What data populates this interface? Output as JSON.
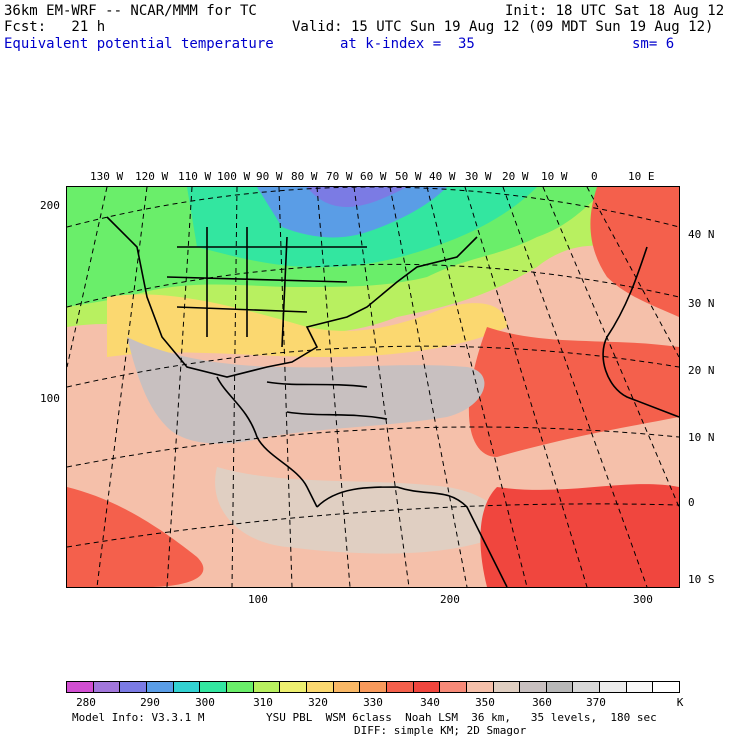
{
  "header": {
    "model": "36km EM-WRF -- NCAR/MMM for TC",
    "init": "Init: 18 UTC Sat 18 Aug 12",
    "fcst": "Fcst:   21 h",
    "valid": "Valid: 15 UTC Sun 19 Aug 12 (09 MDT Sun 19 Aug 12)",
    "field": "Equivalent potential temperature",
    "level": "at k-index =  35",
    "smooth": "sm= 6"
  },
  "map": {
    "lon_labels": [
      "130 W",
      "120 W",
      "110 W",
      "100 W",
      "90 W",
      "80 W",
      "70 W",
      "60 W",
      "50 W",
      "40 W",
      "30 W",
      "20 W",
      "10 W",
      "0",
      "10 E"
    ],
    "lat_labels": [
      "40 N",
      "30 N",
      "20 N",
      "10 N",
      "0",
      "10 S"
    ],
    "y_grid_labels": [
      "200",
      "100"
    ],
    "x_grid_labels": [
      "100",
      "200",
      "300"
    ]
  },
  "colorbar": {
    "unit": "K",
    "labels": [
      "280",
      "290",
      "300",
      "310",
      "320",
      "330",
      "340",
      "350",
      "360",
      "370"
    ],
    "colors": [
      "#d24fd2",
      "#a277db",
      "#7b7be4",
      "#5a9de6",
      "#33d2d2",
      "#33e6a0",
      "#6aee6a",
      "#b8f060",
      "#eef070",
      "#fbd870",
      "#f9b866",
      "#f89a5c",
      "#f4604c",
      "#f0463e",
      "#f78a78",
      "#f5c0aa",
      "#e0cfc2",
      "#c8c0c0",
      "#b8b8b8",
      "#d8d8d8",
      "#ececec",
      "#f8f8f8",
      "#ffffff"
    ]
  },
  "footer": {
    "model_info": "Model Info: V3.3.1 M",
    "physics": "YSU PBL  WSM 6class  Noah LSM  36 km,   35 levels,  180 sec",
    "diffusion": "DIFF: simple KM; 2D Smagor"
  }
}
